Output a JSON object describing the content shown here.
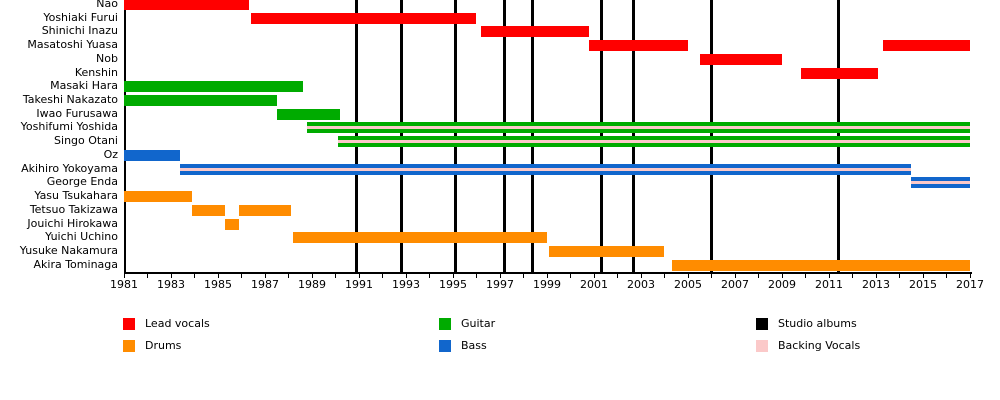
{
  "chart_data": {
    "type": "timeline",
    "description": "Band members timeline (Gantt-style) with studio album release markers",
    "x_axis": {
      "min": 1981,
      "max": 2017,
      "labeled_tick_years": [
        1981,
        1983,
        1985,
        1987,
        1989,
        1991,
        1993,
        1995,
        1997,
        1999,
        2001,
        2003,
        2005,
        2007,
        2009,
        2011,
        2013,
        2015,
        2017
      ],
      "minor_tick_every_years": 1,
      "grid": false
    },
    "colors": {
      "Lead vocals": "#FF0000",
      "Drums": "#FF8C00",
      "Guitar": "#00AB00",
      "Bass": "#1166CC",
      "Studio albums": "#000000",
      "Backing Vocals": "#FBC9C9"
    },
    "members": [
      {
        "name": "Nao",
        "role": "Lead vocals",
        "backing_vocals": false,
        "segments": [
          [
            1981.0,
            1986.3
          ]
        ]
      },
      {
        "name": "Yoshiaki Furui",
        "role": "Lead vocals",
        "backing_vocals": false,
        "segments": [
          [
            1986.4,
            1996.0
          ]
        ]
      },
      {
        "name": "Shinichi Inazu",
        "role": "Lead vocals",
        "backing_vocals": false,
        "segments": [
          [
            1996.2,
            2000.8
          ]
        ]
      },
      {
        "name": "Masatoshi Yuasa",
        "role": "Lead vocals",
        "backing_vocals": false,
        "segments": [
          [
            2000.8,
            2005.0
          ],
          [
            2013.3,
            2017.0
          ]
        ]
      },
      {
        "name": "Nob",
        "role": "Lead vocals",
        "backing_vocals": false,
        "segments": [
          [
            2005.5,
            2009.0
          ]
        ]
      },
      {
        "name": "Kenshin",
        "role": "Lead vocals",
        "backing_vocals": false,
        "segments": [
          [
            2009.8,
            2013.1
          ]
        ]
      },
      {
        "name": "Masaki Hara",
        "role": "Guitar",
        "backing_vocals": false,
        "segments": [
          [
            1981.0,
            1988.6
          ]
        ]
      },
      {
        "name": "Takeshi Nakazato",
        "role": "Guitar",
        "backing_vocals": false,
        "segments": [
          [
            1981.0,
            1987.5
          ]
        ]
      },
      {
        "name": "Iwao Furusawa",
        "role": "Guitar",
        "backing_vocals": false,
        "segments": [
          [
            1987.5,
            1990.2
          ]
        ]
      },
      {
        "name": "Yoshifumi Yoshida",
        "role": "Guitar",
        "backing_vocals": true,
        "segments": [
          [
            1988.8,
            2017.0
          ]
        ]
      },
      {
        "name": "Singo Otani",
        "role": "Guitar",
        "backing_vocals": true,
        "segments": [
          [
            1990.1,
            2017.0
          ]
        ]
      },
      {
        "name": "Oz",
        "role": "Bass",
        "backing_vocals": false,
        "segments": [
          [
            1981.0,
            1983.4
          ]
        ]
      },
      {
        "name": "Akihiro Yokoyama",
        "role": "Bass",
        "backing_vocals": true,
        "segments": [
          [
            1983.4,
            2014.5
          ]
        ]
      },
      {
        "name": "George Enda",
        "role": "Bass",
        "backing_vocals": true,
        "segments": [
          [
            2014.5,
            2017.0
          ]
        ]
      },
      {
        "name": "Yasu Tsukahara",
        "role": "Drums",
        "backing_vocals": false,
        "segments": [
          [
            1981.0,
            1983.9
          ]
        ]
      },
      {
        "name": "Tetsuo Takizawa",
        "role": "Drums",
        "backing_vocals": false,
        "segments": [
          [
            1983.9,
            1985.3
          ],
          [
            1985.9,
            1988.1
          ]
        ]
      },
      {
        "name": "Jouichi Hirokawa",
        "role": "Drums",
        "backing_vocals": false,
        "segments": [
          [
            1985.3,
            1985.9
          ]
        ]
      },
      {
        "name": "Yuichi Uchino",
        "role": "Drums",
        "backing_vocals": false,
        "segments": [
          [
            1988.2,
            1999.0
          ]
        ]
      },
      {
        "name": "Yusuke Nakamura",
        "role": "Drums",
        "backing_vocals": false,
        "segments": [
          [
            1999.1,
            2004.0
          ]
        ]
      },
      {
        "name": "Akira Tominaga",
        "role": "Drums",
        "backing_vocals": false,
        "segments": [
          [
            2004.3,
            2017.0
          ]
        ]
      }
    ],
    "studio_album_years": [
      1990.9,
      1992.8,
      1995.1,
      1997.2,
      1998.4,
      2001.3,
      2002.7,
      2006.0,
      2011.4
    ],
    "legend": {
      "position": "bottom",
      "columns": [
        [
          {
            "label": "Lead vocals",
            "color": "#FF0000"
          },
          {
            "label": "Drums",
            "color": "#FF8C00"
          }
        ],
        [
          {
            "label": "Guitar",
            "color": "#00AB00"
          },
          {
            "label": "Bass",
            "color": "#1166CC"
          }
        ],
        [
          {
            "label": "Studio albums",
            "color": "#000000"
          },
          {
            "label": "Backing Vocals",
            "color": "#FBC9C9"
          }
        ]
      ]
    }
  }
}
